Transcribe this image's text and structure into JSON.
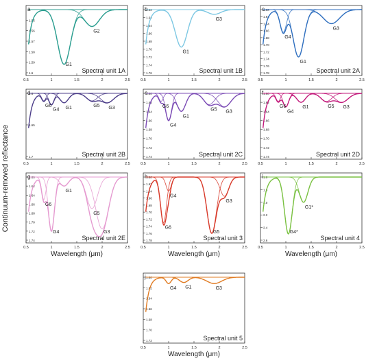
{
  "figure": {
    "ylabel": "Continuum-removed reflectance",
    "xlabel": "Wavelength (μm)"
  },
  "chart_data": [
    {
      "type": "line",
      "panel": "a",
      "title": "Spectral unit 1A",
      "color": "#2a9d8f",
      "xlim": [
        0.5,
        2.5
      ],
      "ylim": [
        1.54,
        1.6
      ],
      "yticks": [
        1.6,
        1.59,
        1.58,
        1.57,
        1.56,
        1.55
      ],
      "bands": [
        {
          "name": "G1",
          "center": 1.25,
          "depth": 0.052,
          "width": 0.3
        },
        {
          "name": "G2",
          "center": 1.8,
          "depth": 0.016,
          "width": 0.35
        }
      ]
    },
    {
      "type": "line",
      "panel": "b",
      "title": "Spectral unit 1B",
      "color": "#7ec8e3",
      "xlim": [
        0.5,
        2.5
      ],
      "ylim": [
        1.6,
        1.76
      ],
      "yticks": [
        1.6,
        1.62,
        1.64,
        1.66,
        1.68,
        1.7,
        1.72,
        1.74,
        1.76
      ],
      "bands": [
        {
          "name": "G1",
          "center": 1.25,
          "depth": 0.095,
          "width": 0.28
        },
        {
          "name": "G3",
          "center": 1.9,
          "depth": 0.012,
          "width": 0.3
        }
      ]
    },
    {
      "type": "line",
      "panel": "c",
      "title": "Spectral unit 2A",
      "color": "#2f6fbf",
      "xlim": [
        0.5,
        2.5
      ],
      "ylim": [
        1.6,
        1.78
      ],
      "yticks": [
        1.6,
        1.62,
        1.64,
        1.66,
        1.68,
        1.7,
        1.72,
        1.74,
        1.76,
        1.78
      ],
      "bands": [
        {
          "name": "G4",
          "center": 0.95,
          "depth": 0.065,
          "width": 0.15
        },
        {
          "name": "G1",
          "center": 1.25,
          "depth": 0.135,
          "width": 0.25
        },
        {
          "name": "G3",
          "center": 1.9,
          "depth": 0.04,
          "width": 0.38
        }
      ]
    },
    {
      "type": "line",
      "panel": "d",
      "title": "Spectral unit 2B",
      "color": "#4b3c88",
      "xlim": [
        0.5,
        2.5
      ],
      "ylim": [
        1.6,
        1.7
      ],
      "yticks": [
        1.6,
        1.65,
        1.7
      ],
      "bands": [
        {
          "name": "G6",
          "center": 0.85,
          "depth": 0.012,
          "width": 0.1
        },
        {
          "name": "G4",
          "center": 1.0,
          "depth": 0.018,
          "width": 0.12
        },
        {
          "name": "G1",
          "center": 1.25,
          "depth": 0.015,
          "width": 0.2
        },
        {
          "name": "G5",
          "center": 1.8,
          "depth": 0.012,
          "width": 0.25
        },
        {
          "name": "G3",
          "center": 2.1,
          "depth": 0.015,
          "width": 0.3
        }
      ]
    },
    {
      "type": "line",
      "panel": "e",
      "title": "Spectral unit 2C",
      "color": "#7b4bb5",
      "xlim": [
        0.5,
        2.5
      ],
      "ylim": [
        1.6,
        1.74
      ],
      "yticks": [
        1.6,
        1.62,
        1.64,
        1.66,
        1.68,
        1.7,
        1.72,
        1.74
      ],
      "bands": [
        {
          "name": "G6",
          "center": 0.85,
          "depth": 0.018,
          "width": 0.1
        },
        {
          "name": "G4",
          "center": 1.0,
          "depth": 0.06,
          "width": 0.14
        },
        {
          "name": "G1",
          "center": 1.25,
          "depth": 0.04,
          "width": 0.2
        },
        {
          "name": "G5",
          "center": 1.8,
          "depth": 0.025,
          "width": 0.25
        },
        {
          "name": "G3",
          "center": 2.1,
          "depth": 0.03,
          "width": 0.3
        }
      ]
    },
    {
      "type": "line",
      "panel": "f",
      "title": "Spectral unit 2D",
      "color": "#c2187a",
      "xlim": [
        0.5,
        2.5
      ],
      "ylim": [
        1.6,
        1.74
      ],
      "yticks": [
        1.6,
        1.62,
        1.64,
        1.66,
        1.68,
        1.7,
        1.72,
        1.74
      ],
      "bands": [
        {
          "name": "G6",
          "center": 0.85,
          "depth": 0.018,
          "width": 0.1
        },
        {
          "name": "G4",
          "center": 1.0,
          "depth": 0.03,
          "width": 0.13
        },
        {
          "name": "G1",
          "center": 1.3,
          "depth": 0.02,
          "width": 0.2
        },
        {
          "name": "G5",
          "center": 1.8,
          "depth": 0.018,
          "width": 0.25
        },
        {
          "name": "G3",
          "center": 2.1,
          "depth": 0.02,
          "width": 0.3
        }
      ]
    },
    {
      "type": "line",
      "panel": "g",
      "title": "Spectral unit 2E",
      "color": "#e59ad0",
      "xlim": [
        0.5,
        2.5
      ],
      "ylim": [
        1.6,
        1.74
      ],
      "yticks": [
        1.6,
        1.62,
        1.64,
        1.66,
        1.68,
        1.7,
        1.72,
        1.74
      ],
      "bands": [
        {
          "name": "G6",
          "center": 0.85,
          "depth": 0.05,
          "width": 0.1
        },
        {
          "name": "G4",
          "center": 1.0,
          "depth": 0.12,
          "width": 0.14
        },
        {
          "name": "G1",
          "center": 1.25,
          "depth": 0.02,
          "width": 0.2
        },
        {
          "name": "G5",
          "center": 1.8,
          "depth": 0.07,
          "width": 0.25
        },
        {
          "name": "G3",
          "center": 2.0,
          "depth": 0.115,
          "width": 0.3
        }
      ]
    },
    {
      "type": "line",
      "panel": "h",
      "title": "Spectral unit 3",
      "color": "#d83a2a",
      "xlim": [
        0.5,
        2.5
      ],
      "ylim": [
        1.6,
        1.78
      ],
      "yticks": [
        1.6,
        1.62,
        1.64,
        1.66,
        1.68,
        1.7,
        1.72,
        1.74,
        1.76,
        1.78
      ],
      "bands": [
        {
          "name": "G4",
          "center": 1.0,
          "depth": 0.04,
          "width": 0.12
        },
        {
          "name": "G6",
          "center": 0.9,
          "depth": 0.13,
          "width": 0.14
        },
        {
          "name": "G5",
          "center": 1.85,
          "depth": 0.16,
          "width": 0.22
        },
        {
          "name": "G3",
          "center": 2.1,
          "depth": 0.055,
          "width": 0.2
        }
      ]
    },
    {
      "type": "line",
      "panel": "i",
      "title": "Spectral unit 4",
      "color": "#7ac142",
      "xlim": [
        0.5,
        2.5
      ],
      "ylim": [
        1.6,
        2.6
      ],
      "yticks": [
        1.6,
        1.8,
        2.0,
        2.2,
        2.4,
        2.6
      ],
      "bands": [
        {
          "name": "G4*",
          "center": 1.05,
          "depth": 0.9,
          "width": 0.18
        },
        {
          "name": "G1*",
          "center": 1.35,
          "depth": 0.4,
          "width": 0.2
        }
      ]
    },
    {
      "type": "line",
      "panel": "j",
      "title": "Spectral unit 5",
      "color": "#e07b22",
      "xlim": [
        0.5,
        2.5
      ],
      "ylim": [
        1.6,
        1.72
      ],
      "yticks": [
        1.6,
        1.62,
        1.64,
        1.66,
        1.68,
        1.7,
        1.72
      ],
      "bands": [
        {
          "name": "G4",
          "center": 1.0,
          "depth": 0.012,
          "width": 0.12
        },
        {
          "name": "G1",
          "center": 1.3,
          "depth": 0.01,
          "width": 0.2
        },
        {
          "name": "G3",
          "center": 1.9,
          "depth": 0.012,
          "width": 0.35
        }
      ]
    }
  ]
}
